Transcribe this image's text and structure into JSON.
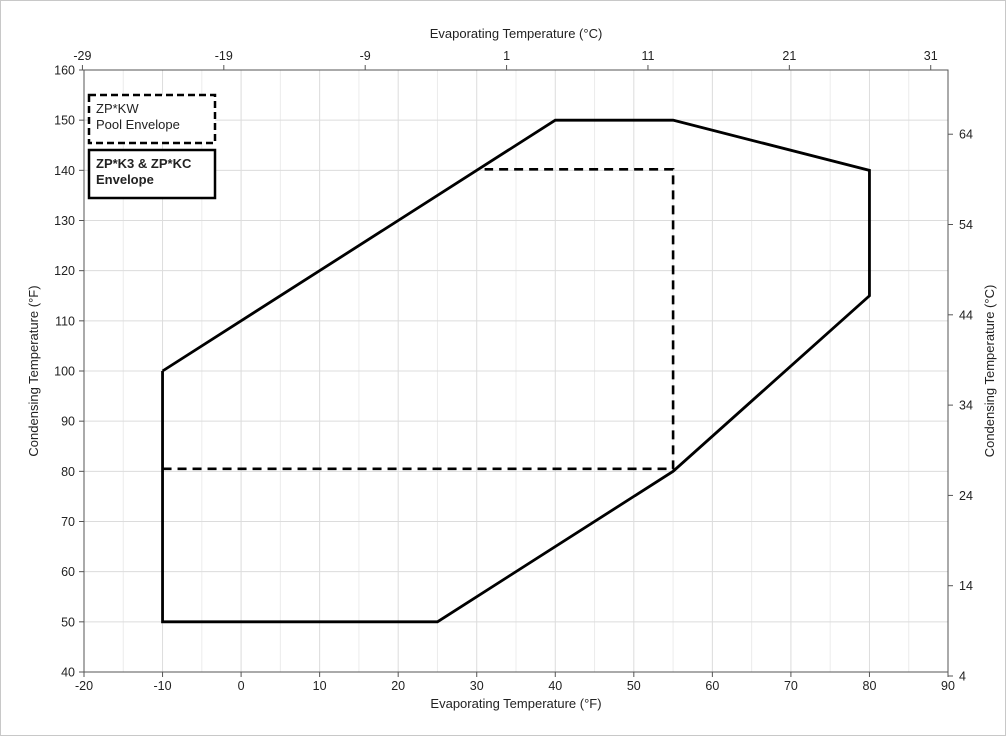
{
  "chart_data": {
    "type": "line",
    "xlabel": "Evaporating Temperature (°F)",
    "ylabel": "Condensing Temperature (°F)",
    "x2label": "Evaporating Temperature (°C)",
    "y2label": "Condensing Temperature (°C)",
    "xlim": [
      -20,
      90
    ],
    "ylim": [
      40,
      160
    ],
    "x_ticks": [
      -20,
      -10,
      0,
      10,
      20,
      30,
      40,
      50,
      60,
      70,
      80,
      90
    ],
    "y_ticks": [
      40,
      50,
      60,
      70,
      80,
      90,
      100,
      110,
      120,
      130,
      140,
      150,
      160
    ],
    "x2_tick_labels": [
      "-29",
      "-19",
      "-9",
      "1",
      "11",
      "21",
      "31"
    ],
    "y2_tick_labels": [
      "4",
      "14",
      "24",
      "34",
      "44",
      "54",
      "64"
    ],
    "grid": true,
    "legend": [
      {
        "lines": [
          "ZP*KW",
          "Pool Envelope"
        ],
        "style": "dashed",
        "bold": false
      },
      {
        "lines": [
          "ZP*K3 & ZP*KC",
          "Envelope"
        ],
        "style": "solid",
        "bold": true
      }
    ],
    "series": [
      {
        "name": "ZP*K3 & ZP*KC Envelope",
        "style": "solid",
        "color": "#000000",
        "x": [
          -10,
          -10,
          25,
          55,
          80,
          80,
          55,
          40,
          -10
        ],
        "y": [
          100,
          50,
          50,
          80,
          115,
          140,
          150,
          150,
          100
        ]
      },
      {
        "name": "ZP*KW Pool Envelope",
        "style": "dashed",
        "color": "#000000",
        "x": [
          -10,
          55,
          55,
          31
        ],
        "y": [
          80.5,
          80.5,
          140.2,
          140.2
        ]
      }
    ]
  }
}
